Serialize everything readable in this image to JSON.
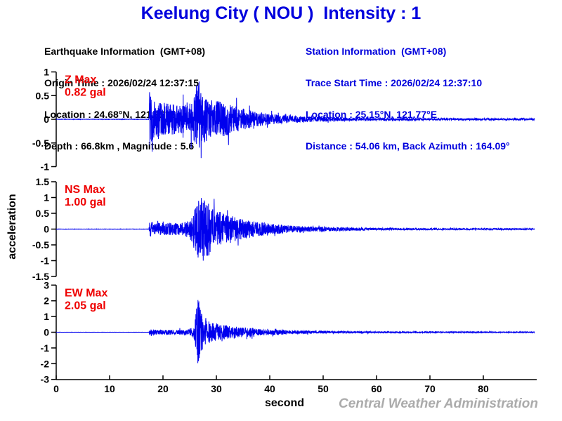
{
  "title": "Keelung City ( NOU )  Intensity : 1",
  "earthquake_info": {
    "heading": "Earthquake Information  (GMT+08)",
    "lines": [
      "Origin Time : 2026/02/24 12:37:15",
      "Location : 24.68°N, 121.92°E",
      "Depth : 66.8km , Magnitude : 5.6"
    ]
  },
  "station_info": {
    "heading": "Station Information  (GMT+08)",
    "lines": [
      "Trace Start Time : 2026/02/24 12:37:10",
      "Location : 25.15°N, 121.77°E",
      "Distance : 54.06 km, Back Azimuth : 164.09°"
    ]
  },
  "watermark": "Central Weather Administration",
  "colors": {
    "title_blue": "#0000dd",
    "trace_blue": "#0000ee",
    "label_red": "#ee0000",
    "watermark_gray": "#ababab",
    "axis_black": "#000000"
  },
  "chart_data": {
    "type": "line",
    "xlabel": "second",
    "ylabel": "acceleration",
    "xlim": [
      0,
      90
    ],
    "x_ticks": [
      0,
      10,
      20,
      30,
      40,
      50,
      60,
      70,
      80
    ],
    "trace_end_s": 89.6,
    "traces": [
      {
        "component": "Z",
        "label": "Z Max",
        "max_text": "0.82 gal",
        "max_gal": 0.82,
        "ylim": [
          -1,
          1
        ],
        "y_ticks": [
          1,
          0.5,
          0,
          -0.5,
          -1
        ],
        "onset_s": 17.4,
        "peak_s": 26.7,
        "envelope": [
          [
            0,
            0.004
          ],
          [
            17.35,
            0.004
          ],
          [
            17.5,
            0.62
          ],
          [
            18,
            0.42
          ],
          [
            19,
            0.36
          ],
          [
            21,
            0.32
          ],
          [
            23.5,
            0.3
          ],
          [
            25.5,
            0.38
          ],
          [
            26.3,
            0.55
          ],
          [
            26.7,
            0.8
          ],
          [
            27.3,
            0.5
          ],
          [
            28.5,
            0.42
          ],
          [
            30,
            0.38
          ],
          [
            32,
            0.33
          ],
          [
            34,
            0.25
          ],
          [
            36,
            0.18
          ],
          [
            38,
            0.14
          ],
          [
            40,
            0.11
          ],
          [
            43,
            0.08
          ],
          [
            46,
            0.06
          ],
          [
            50,
            0.05
          ],
          [
            55,
            0.035
          ],
          [
            60,
            0.03
          ],
          [
            70,
            0.022
          ],
          [
            80,
            0.02
          ],
          [
            89.6,
            0.018
          ]
        ]
      },
      {
        "component": "NS",
        "label": "NS Max",
        "max_text": "1.00 gal",
        "max_gal": 1.0,
        "ylim": [
          -1.5,
          1.5
        ],
        "y_ticks": [
          1.5,
          1,
          0.5,
          0,
          -0.5,
          -1,
          -1.5
        ],
        "onset_s": 17.4,
        "peak_s": 27.5,
        "envelope": [
          [
            0,
            0.004
          ],
          [
            17.35,
            0.004
          ],
          [
            17.5,
            0.26
          ],
          [
            18.5,
            0.2
          ],
          [
            21,
            0.19
          ],
          [
            24,
            0.2
          ],
          [
            25.3,
            0.35
          ],
          [
            26,
            0.7
          ],
          [
            26.8,
            0.95
          ],
          [
            27.6,
            1.0
          ],
          [
            28.4,
            0.85
          ],
          [
            29.5,
            0.65
          ],
          [
            31,
            0.52
          ],
          [
            33,
            0.4
          ],
          [
            35,
            0.3
          ],
          [
            37,
            0.24
          ],
          [
            40,
            0.17
          ],
          [
            43,
            0.12
          ],
          [
            46,
            0.09
          ],
          [
            50,
            0.07
          ],
          [
            55,
            0.05
          ],
          [
            60,
            0.035
          ],
          [
            70,
            0.025
          ],
          [
            80,
            0.022
          ],
          [
            89.6,
            0.02
          ]
        ]
      },
      {
        "component": "EW",
        "label": "EW Max",
        "max_text": "2.05 gal",
        "max_gal": 2.05,
        "ylim": [
          -3,
          3
        ],
        "y_ticks": [
          3,
          2,
          1,
          0,
          -1,
          -2,
          -3
        ],
        "onset_s": 17.4,
        "peak_s": 26.7,
        "envelope": [
          [
            0,
            0.004
          ],
          [
            17.35,
            0.004
          ],
          [
            17.5,
            0.17
          ],
          [
            19,
            0.14
          ],
          [
            22,
            0.13
          ],
          [
            24.5,
            0.15
          ],
          [
            25.8,
            0.35
          ],
          [
            26.4,
            1.6
          ],
          [
            26.7,
            2.0
          ],
          [
            27.1,
            1.1
          ],
          [
            27.8,
            0.85
          ],
          [
            28.8,
            0.6
          ],
          [
            30,
            0.5
          ],
          [
            32,
            0.38
          ],
          [
            34,
            0.3
          ],
          [
            36,
            0.26
          ],
          [
            38,
            0.2
          ],
          [
            40,
            0.17
          ],
          [
            43,
            0.12
          ],
          [
            46,
            0.09
          ],
          [
            50,
            0.07
          ],
          [
            55,
            0.05
          ],
          [
            60,
            0.04
          ],
          [
            70,
            0.03
          ],
          [
            80,
            0.025
          ],
          [
            89.6,
            0.022
          ]
        ]
      }
    ]
  }
}
